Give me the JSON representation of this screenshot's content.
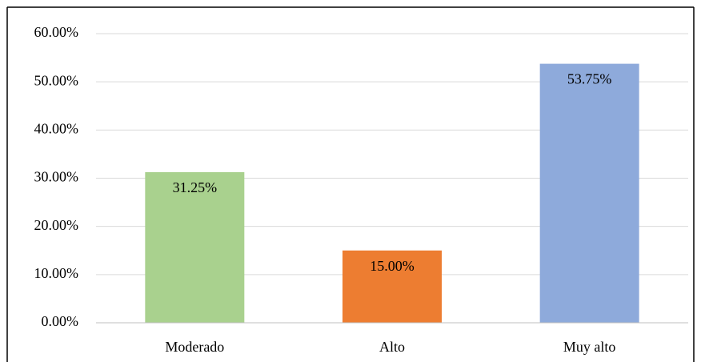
{
  "chart_data": {
    "type": "bar",
    "categories": [
      "Moderado",
      "Alto",
      "Muy alto"
    ],
    "values": [
      31.25,
      15,
      53.75
    ],
    "value_labels": [
      "31.25%",
      "15.00%",
      "53.75%"
    ],
    "colors": [
      "#a9d18e",
      "#ed7d31",
      "#8eaadb"
    ],
    "ylim": [
      0,
      60
    ],
    "yticks": [
      {
        "value": 0,
        "label": "0.00%"
      },
      {
        "value": 10,
        "label": "10.00%"
      },
      {
        "value": 20,
        "label": "20.00%"
      },
      {
        "value": 30,
        "label": "30.00%"
      },
      {
        "value": 40,
        "label": "40.00%"
      },
      {
        "value": 50,
        "label": "50.00%"
      },
      {
        "value": 60,
        "label": "60.00%"
      }
    ],
    "grid": true
  }
}
